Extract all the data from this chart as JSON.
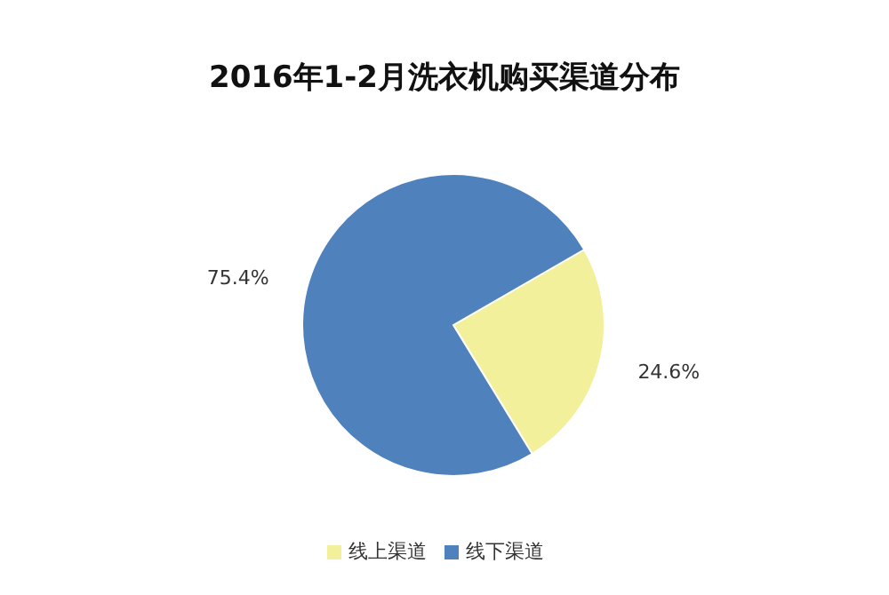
{
  "chart_data": {
    "type": "pie",
    "title": "2016年1-2月洗衣机购买渠道分布",
    "categories": [
      "线上渠道",
      "线下渠道"
    ],
    "values": [
      24.6,
      75.4
    ],
    "colors": [
      "#f2f09b",
      "#4f81bd"
    ],
    "value_labels": [
      "24.6%",
      "75.4%"
    ],
    "legend": "bottom"
  }
}
